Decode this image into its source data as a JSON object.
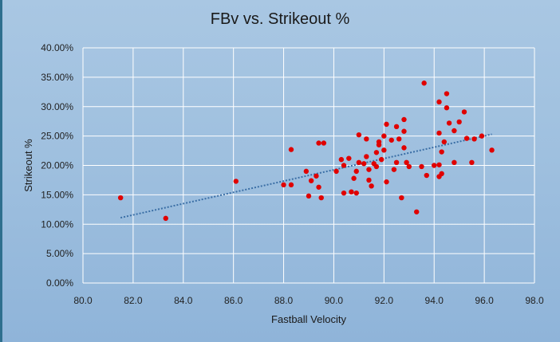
{
  "chart_data": {
    "type": "scatter",
    "title": "FBv vs. Strikeout %",
    "xlabel": "Fastball Velocity",
    "ylabel": "Strikeout %",
    "xlim": [
      80.0,
      98.0
    ],
    "ylim": [
      0.0,
      0.4
    ],
    "x_ticks": [
      "80.0",
      "82.0",
      "84.0",
      "86.0",
      "88.0",
      "90.0",
      "92.0",
      "94.0",
      "96.0",
      "98.0"
    ],
    "y_ticks": [
      "0.00%",
      "5.00%",
      "10.00%",
      "15.00%",
      "20.00%",
      "25.00%",
      "30.00%",
      "35.00%",
      "40.00%"
    ],
    "grid": true,
    "legend": "none",
    "marker_color": "#e00000",
    "trendline": {
      "type": "linear",
      "style": "dotted",
      "color": "#3a6ea5",
      "x_range": [
        81.5,
        96.3
      ],
      "y_range": [
        0.111,
        0.253
      ]
    },
    "points": [
      [
        81.5,
        0.145
      ],
      [
        83.3,
        0.11
      ],
      [
        86.1,
        0.173
      ],
      [
        88.0,
        0.167
      ],
      [
        88.3,
        0.167
      ],
      [
        88.3,
        0.227
      ],
      [
        88.9,
        0.19
      ],
      [
        89.0,
        0.148
      ],
      [
        89.1,
        0.174
      ],
      [
        89.3,
        0.182
      ],
      [
        89.4,
        0.163
      ],
      [
        89.4,
        0.238
      ],
      [
        89.5,
        0.145
      ],
      [
        89.6,
        0.238
      ],
      [
        90.1,
        0.19
      ],
      [
        90.3,
        0.21
      ],
      [
        90.4,
        0.153
      ],
      [
        90.4,
        0.2
      ],
      [
        90.6,
        0.212
      ],
      [
        90.7,
        0.155
      ],
      [
        90.8,
        0.178
      ],
      [
        90.9,
        0.153
      ],
      [
        90.9,
        0.19
      ],
      [
        91.0,
        0.205
      ],
      [
        91.0,
        0.252
      ],
      [
        91.2,
        0.203
      ],
      [
        91.3,
        0.215
      ],
      [
        91.3,
        0.245
      ],
      [
        91.4,
        0.193
      ],
      [
        91.4,
        0.175
      ],
      [
        91.5,
        0.165
      ],
      [
        91.6,
        0.203
      ],
      [
        91.7,
        0.198
      ],
      [
        91.7,
        0.222
      ],
      [
        91.8,
        0.235
      ],
      [
        91.8,
        0.24
      ],
      [
        91.9,
        0.21
      ],
      [
        92.0,
        0.226
      ],
      [
        92.0,
        0.25
      ],
      [
        92.1,
        0.27
      ],
      [
        92.1,
        0.172
      ],
      [
        92.3,
        0.243
      ],
      [
        92.4,
        0.193
      ],
      [
        92.5,
        0.205
      ],
      [
        92.5,
        0.266
      ],
      [
        92.6,
        0.245
      ],
      [
        92.7,
        0.145
      ],
      [
        92.8,
        0.23
      ],
      [
        92.8,
        0.258
      ],
      [
        92.8,
        0.278
      ],
      [
        92.9,
        0.205
      ],
      [
        93.0,
        0.198
      ],
      [
        93.3,
        0.121
      ],
      [
        93.5,
        0.198
      ],
      [
        93.6,
        0.34
      ],
      [
        93.7,
        0.183
      ],
      [
        94.0,
        0.2
      ],
      [
        94.2,
        0.181
      ],
      [
        94.2,
        0.201
      ],
      [
        94.2,
        0.255
      ],
      [
        94.2,
        0.308
      ],
      [
        94.3,
        0.223
      ],
      [
        94.3,
        0.186
      ],
      [
        94.4,
        0.24
      ],
      [
        94.5,
        0.298
      ],
      [
        94.5,
        0.322
      ],
      [
        94.6,
        0.272
      ],
      [
        94.8,
        0.259
      ],
      [
        94.8,
        0.205
      ],
      [
        95.0,
        0.274
      ],
      [
        95.2,
        0.291
      ],
      [
        95.3,
        0.246
      ],
      [
        95.5,
        0.205
      ],
      [
        95.6,
        0.245
      ],
      [
        95.9,
        0.25
      ],
      [
        96.3,
        0.226
      ]
    ]
  }
}
